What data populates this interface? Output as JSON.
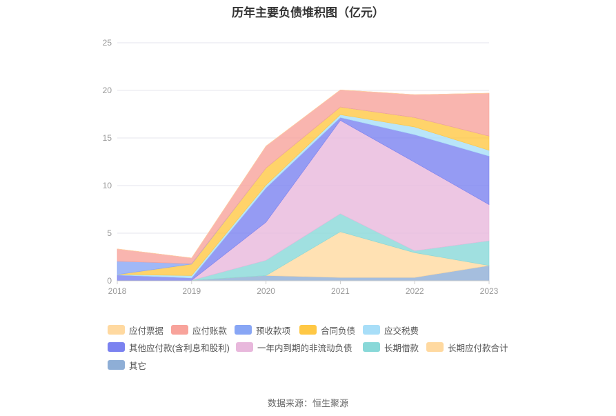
{
  "title": "历年主要负债堆积图（亿元）",
  "source": "数据来源：恒生聚源",
  "chart_data": {
    "type": "area",
    "stacked": true,
    "x": [
      "2018",
      "2019",
      "2020",
      "2021",
      "2022",
      "2023"
    ],
    "ylim": [
      0,
      25
    ],
    "yticks": [
      0,
      5,
      10,
      15,
      20,
      25
    ],
    "grid": true,
    "legend_position": "bottom",
    "series": [
      {
        "name": "其它",
        "color": "#8eaed6",
        "values": [
          0.05,
          0.05,
          0.55,
          0.35,
          0.35,
          1.6
        ]
      },
      {
        "name": "长期应付款合计",
        "color": "#ffd9a0",
        "values": [
          0,
          0,
          0,
          4.8,
          2.6,
          0
        ]
      },
      {
        "name": "长期借款",
        "color": "#88d8d8",
        "values": [
          0,
          0,
          1.6,
          1.9,
          0.2,
          2.6
        ]
      },
      {
        "name": "一年内到期的非流动负债",
        "color": "#e8b8dc",
        "values": [
          0,
          0,
          4.0,
          9.8,
          9.3,
          3.8
        ]
      },
      {
        "name": "其他应付款(含利息和股利)",
        "color": "#7b82f0",
        "values": [
          0.55,
          0.25,
          3.6,
          0.3,
          2.9,
          5.1
        ]
      },
      {
        "name": "应交税费",
        "color": "#a8def8",
        "values": [
          0.05,
          0.25,
          0.3,
          0.3,
          0.8,
          0.6
        ]
      },
      {
        "name": "合同负债",
        "color": "#ffc845",
        "values": [
          0,
          1.2,
          1.8,
          0.8,
          1.0,
          1.5
        ]
      },
      {
        "name": "预收款项",
        "color": "#88a6f5",
        "values": [
          1.4,
          0.05,
          0,
          0,
          0,
          0
        ]
      },
      {
        "name": "应付账款",
        "color": "#f8a39b",
        "values": [
          1.3,
          0.6,
          2.3,
          1.8,
          2.4,
          4.5
        ]
      },
      {
        "name": "应付票据",
        "color": "#ffd9a0",
        "values": [
          0,
          0,
          0,
          0,
          0,
          0
        ]
      }
    ]
  },
  "legend": {
    "items": [
      {
        "label": "应付票据",
        "color": "#ffd9a0"
      },
      {
        "label": "应付账款",
        "color": "#f8a39b"
      },
      {
        "label": "预收款项",
        "color": "#88a6f5"
      },
      {
        "label": "合同负债",
        "color": "#ffc845"
      },
      {
        "label": "应交税费",
        "color": "#a8def8"
      },
      {
        "label": "其他应付款(含利息和股利)",
        "color": "#7b82f0"
      },
      {
        "label": "一年内到期的非流动负债",
        "color": "#e8b8dc"
      },
      {
        "label": "长期借款",
        "color": "#88d8d8"
      },
      {
        "label": "长期应付款合计",
        "color": "#ffd9a0"
      },
      {
        "label": "其它",
        "color": "#8eaed6"
      }
    ]
  }
}
